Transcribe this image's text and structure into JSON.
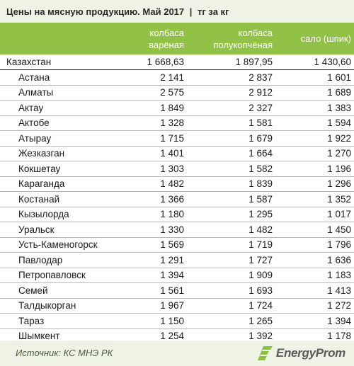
{
  "title": {
    "main": "Цены на мясную продукцию. Май 2017",
    "separator": "|",
    "unit": "тг за кг"
  },
  "columns": [
    {
      "line1": "колбаса",
      "line2": "варёная"
    },
    {
      "line1": "колбаса",
      "line2": "полукопчёная"
    },
    {
      "line1": "сало (шпик)",
      "line2": ""
    }
  ],
  "rows": [
    {
      "name": "Казахстан",
      "v1": "1 668,63",
      "v2": "1 897,95",
      "v3": "1 430,60"
    },
    {
      "name": "Астана",
      "v1": "2 141",
      "v2": "2 837",
      "v3": "1 601"
    },
    {
      "name": "Алматы",
      "v1": "2 575",
      "v2": "2 912",
      "v3": "1 689"
    },
    {
      "name": "Актау",
      "v1": "1 849",
      "v2": "2 327",
      "v3": "1 383"
    },
    {
      "name": "Актобе",
      "v1": "1 328",
      "v2": "1 581",
      "v3": "1 594"
    },
    {
      "name": "Атырау",
      "v1": "1 715",
      "v2": "1 679",
      "v3": "1 922"
    },
    {
      "name": "Жезказган",
      "v1": "1 401",
      "v2": "1 664",
      "v3": "1 270"
    },
    {
      "name": "Кокшетау",
      "v1": "1 303",
      "v2": "1 582",
      "v3": "1 196"
    },
    {
      "name": "Караганда",
      "v1": "1 482",
      "v2": "1 839",
      "v3": "1 296"
    },
    {
      "name": "Костанай",
      "v1": "1 366",
      "v2": "1 587",
      "v3": "1 352"
    },
    {
      "name": "Кызылорда",
      "v1": "1 180",
      "v2": "1 295",
      "v3": "1 017"
    },
    {
      "name": "Уральск",
      "v1": "1 330",
      "v2": "1 482",
      "v3": "1 450"
    },
    {
      "name": "Усть-Каменогорск",
      "v1": "1 569",
      "v2": "1 719",
      "v3": "1 796"
    },
    {
      "name": "Павлодар",
      "v1": "1 291",
      "v2": "1 727",
      "v3": "1 636"
    },
    {
      "name": "Петропавловск",
      "v1": "1 394",
      "v2": "1 909",
      "v3": "1 183"
    },
    {
      "name": "Семей",
      "v1": "1 561",
      "v2": "1 693",
      "v3": "1 413"
    },
    {
      "name": "Талдыкорган",
      "v1": "1 967",
      "v2": "1 724",
      "v3": "1 272"
    },
    {
      "name": "Тараз",
      "v1": "1 150",
      "v2": "1 265",
      "v3": "1 394"
    },
    {
      "name": "Шымкент",
      "v1": "1 254",
      "v2": "1 392",
      "v3": "1 178"
    }
  ],
  "footer": {
    "source": "Источник: КС МНЭ РК",
    "logo_text": "EnergyProm",
    "logo_icon": "energyprom-logo-icon"
  },
  "colors": {
    "header_bg": "#92c147",
    "band_bg": "#eef3e6",
    "logo_green": "#8dc03f"
  }
}
